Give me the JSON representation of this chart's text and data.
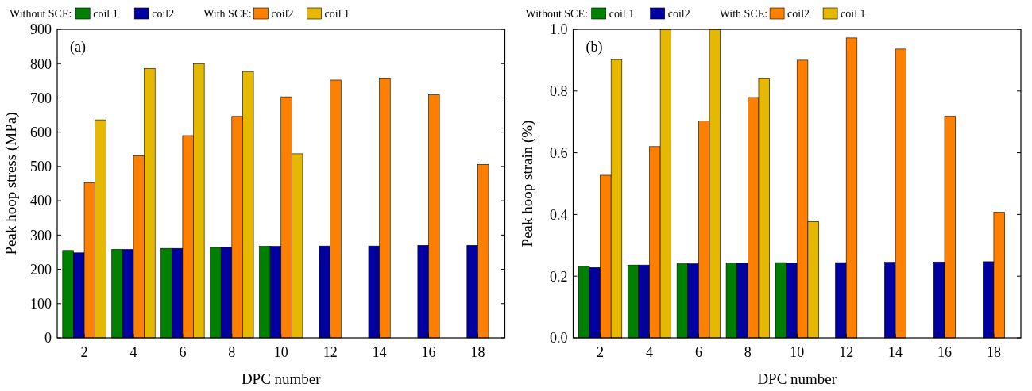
{
  "chart_data": [
    {
      "type": "bar",
      "xlabel": "DPC number",
      "ylabel": "Peak hoop stress (MPa)",
      "categories": [
        "2",
        "4",
        "6",
        "8",
        "10",
        "12",
        "14",
        "16",
        "18"
      ],
      "series": [
        {
          "name": "coil 1",
          "color": "#008000",
          "values": [
            255,
            258,
            261,
            264,
            267,
            null,
            null,
            null,
            null
          ]
        },
        {
          "name": "coil2",
          "color": "#0000a0",
          "values": [
            248,
            258,
            261,
            264,
            267,
            268,
            268,
            270,
            270
          ]
        },
        {
          "name": "coil2",
          "color": "#ff8000",
          "values": [
            453,
            531,
            590,
            646,
            703,
            752,
            758,
            709,
            506
          ]
        },
        {
          "name": "coil 1",
          "color": "#e6b800",
          "values": [
            636,
            786,
            799,
            777,
            537,
            null,
            null,
            null,
            null
          ]
        }
      ],
      "ylim": [
        0,
        900
      ],
      "yticks": [
        0,
        100,
        200,
        300,
        400,
        500,
        600,
        700,
        800,
        900
      ],
      "legend": "top",
      "grid": false,
      "annotations": [
        "(a)",
        "Without SCE:",
        "With SCE:"
      ]
    },
    {
      "type": "bar",
      "xlabel": "DPC number",
      "ylabel": "Peak hoop strain (%)",
      "categories": [
        "2",
        "4",
        "6",
        "8",
        "10",
        "12",
        "14",
        "16",
        "18"
      ],
      "series": [
        {
          "name": "coil 1",
          "color": "#008000",
          "values": [
            0.232,
            0.236,
            0.24,
            0.243,
            0.244,
            null,
            null,
            null,
            null
          ]
        },
        {
          "name": "coil2",
          "color": "#0000a0",
          "values": [
            0.228,
            0.236,
            0.24,
            0.242,
            0.243,
            0.244,
            0.245,
            0.246,
            0.247
          ]
        },
        {
          "name": "coil2",
          "color": "#ff8000",
          "values": [
            0.527,
            0.62,
            0.703,
            0.779,
            0.9,
            0.972,
            0.936,
            0.718,
            0.407
          ]
        },
        {
          "name": "coil 1",
          "color": "#e6b800",
          "values": [
            0.902,
            1.0,
            1.0,
            0.842,
            0.377,
            null,
            null,
            null,
            null
          ]
        }
      ],
      "ylim": [
        0,
        1.0
      ],
      "yticks": [
        {
          "value": 0,
          "label": "0.0"
        },
        0.2,
        0.4,
        0.6,
        0.8,
        {
          "value": 1,
          "label": "1.0"
        }
      ],
      "legend": "top",
      "grid": false,
      "annotations": [
        "(b)",
        "Without SCE:",
        "With SCE:"
      ]
    }
  ]
}
